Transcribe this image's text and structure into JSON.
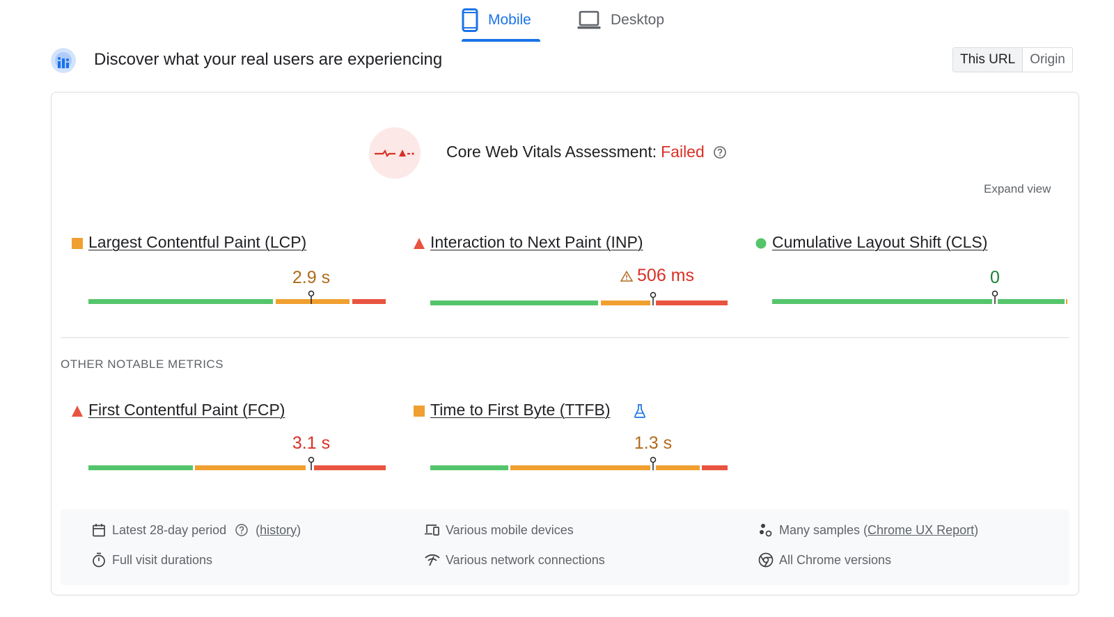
{
  "tabs": [
    {
      "label": "Mobile",
      "icon": "phone-icon",
      "active": true
    },
    {
      "label": "Desktop",
      "icon": "laptop-icon",
      "active": false
    }
  ],
  "header": {
    "headline": "Discover what your real users are experiencing",
    "toggle": {
      "this_url": "This URL",
      "origin": "Origin",
      "selected": "This URL"
    }
  },
  "assessment": {
    "title": "Core Web Vitals Assessment:",
    "status": "Failed",
    "expand_label": "Expand view"
  },
  "core_metrics": [
    {
      "name": "Largest Contentful Paint (LCP)",
      "value": "2.9 s",
      "rating": "needs-improvement",
      "rating_icon": "orange-square-icon"
    },
    {
      "name": "Interaction to Next Paint (INP)",
      "value": "506 ms",
      "rating": "poor",
      "rating_icon": "red-triangle-icon"
    },
    {
      "name": "Cumulative Layout Shift (CLS)",
      "value": "0",
      "rating": "good",
      "rating_icon": "green-circle-icon"
    }
  ],
  "other_metrics_label": "OTHER NOTABLE METRICS",
  "other_metrics": [
    {
      "name": "First Contentful Paint (FCP)",
      "value": "3.1 s",
      "rating": "poor",
      "rating_icon": "red-triangle-icon"
    },
    {
      "name": "Time to First Byte (TTFB)",
      "value": "1.3 s",
      "rating": "needs-improvement",
      "rating_icon": "orange-square-icon",
      "experimental_icon": "flask-icon"
    }
  ],
  "footer": {
    "period": "Latest 28-day period",
    "history_open": "(",
    "history_link": "history",
    "history_close": ")",
    "devices": "Various mobile devices",
    "samples_prefix": "Many samples (",
    "samples_link": "Chrome UX Report",
    "samples_suffix": ")",
    "durations": "Full visit durations",
    "network": "Various network connections",
    "chrome": "All Chrome versions"
  },
  "colors": {
    "accent": "#1a73e8",
    "good": "#55c56b",
    "needs_improvement": "#f0a030",
    "poor": "#e8543f",
    "failed_text": "#d93025",
    "ni_text": "#b06a1a",
    "good_text": "#188038"
  }
}
